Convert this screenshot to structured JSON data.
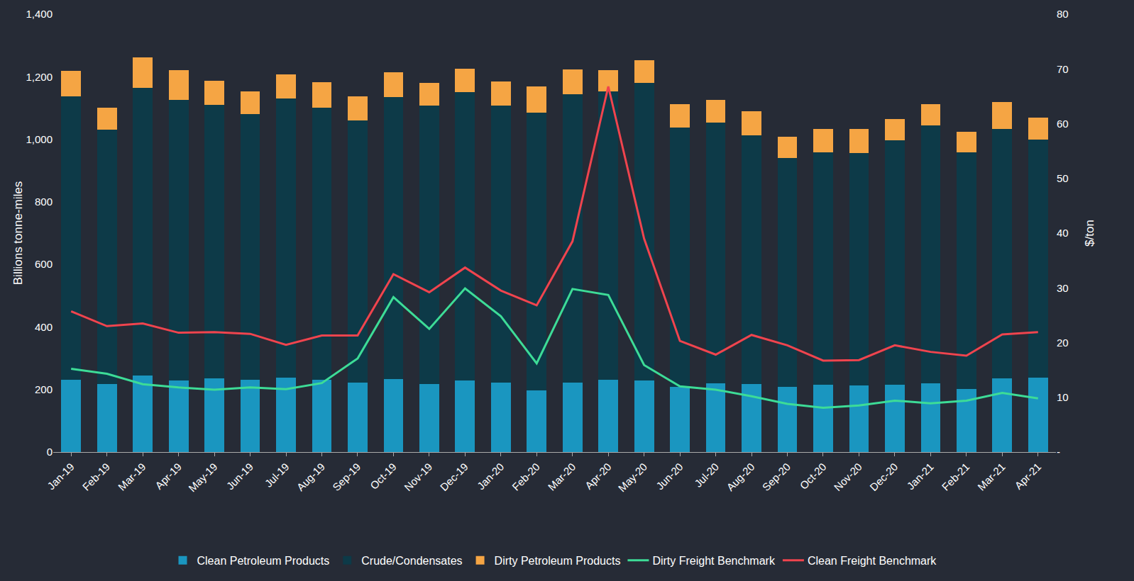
{
  "chart_data": {
    "type": "bar",
    "stacked": true,
    "grid": false,
    "legend": "bottom",
    "ylabel": "Billions tonne-miles",
    "y2label": "$/ton",
    "categories": [
      "Jan-19",
      "Feb-19",
      "Mar-19",
      "Apr-19",
      "May-19",
      "Jun-19",
      "Jul-19",
      "Aug-19",
      "Sep-19",
      "Oct-19",
      "Nov-19",
      "Dec-19",
      "Jan-20",
      "Feb-20",
      "Mar-20",
      "Apr-20",
      "May-20",
      "Jun-20",
      "Jul-20",
      "Aug-20",
      "Sep-20",
      "Oct-20",
      "Nov-20",
      "Dec-20",
      "Jan-21",
      "Feb-21",
      "Mar-21",
      "Apr-21"
    ],
    "ylim": [
      0,
      1400
    ],
    "yticks": [
      0,
      200,
      400,
      600,
      800,
      {
        "value": 1000,
        "label": "1,000"
      },
      {
        "value": 1200,
        "label": "1,200"
      },
      {
        "value": 1400,
        "label": "1,400"
      }
    ],
    "y2lim": [
      0,
      80
    ],
    "y2ticks": [
      {
        "value": 0,
        "label": "-"
      },
      10,
      20,
      30,
      40,
      50,
      60,
      70,
      80
    ],
    "series": [
      {
        "name": "Clean Petroleum Products",
        "type": "bar",
        "color": "#1a96c0",
        "values": [
          232,
          217,
          245,
          228,
          235,
          230,
          238,
          230,
          221,
          234,
          218,
          228,
          221,
          198,
          223,
          232,
          228,
          208,
          219,
          217,
          208,
          215,
          213,
          215,
          220,
          202,
          235,
          238
        ]
      },
      {
        "name": "Crude/Condensates",
        "type": "bar",
        "color": "#0d3a48",
        "values": [
          905,
          813,
          920,
          897,
          875,
          850,
          892,
          870,
          839,
          901,
          890,
          922,
          887,
          887,
          920,
          920,
          952,
          830,
          834,
          796,
          732,
          743,
          743,
          782,
          825,
          756,
          797,
          760
        ]
      },
      {
        "name": "Dirty Petroleum Products",
        "type": "bar",
        "color": "#f5a544",
        "values": [
          81,
          70,
          97,
          95,
          78,
          72,
          77,
          83,
          77,
          80,
          72,
          75,
          77,
          83,
          80,
          70,
          72,
          75,
          72,
          77,
          67,
          74,
          76,
          68,
          68,
          67,
          88,
          72
        ]
      },
      {
        "name": "Dirty Freight Benchmark",
        "type": "line",
        "axis": "y2",
        "color": "#3ddc97",
        "values": [
          15.2,
          14.3,
          12.4,
          11.8,
          11.4,
          11.8,
          11.5,
          12.6,
          17.1,
          28.3,
          22.5,
          29.9,
          24.8,
          16.2,
          29.8,
          28.7,
          15.9,
          12.0,
          11.4,
          10.2,
          8.8,
          8.1,
          8.5,
          9.4,
          8.9,
          9.4,
          10.8,
          9.8
        ]
      },
      {
        "name": "Clean Freight Benchmark",
        "type": "line",
        "axis": "y2",
        "color": "#f0444e",
        "values": [
          25.7,
          23.0,
          23.5,
          21.8,
          21.9,
          21.6,
          19.6,
          21.3,
          21.3,
          32.5,
          29.2,
          33.7,
          29.5,
          26.8,
          38.5,
          66.8,
          39.0,
          20.3,
          17.8,
          21.4,
          19.5,
          16.7,
          16.8,
          19.5,
          18.3,
          17.6,
          21.5,
          21.9
        ]
      }
    ]
  }
}
